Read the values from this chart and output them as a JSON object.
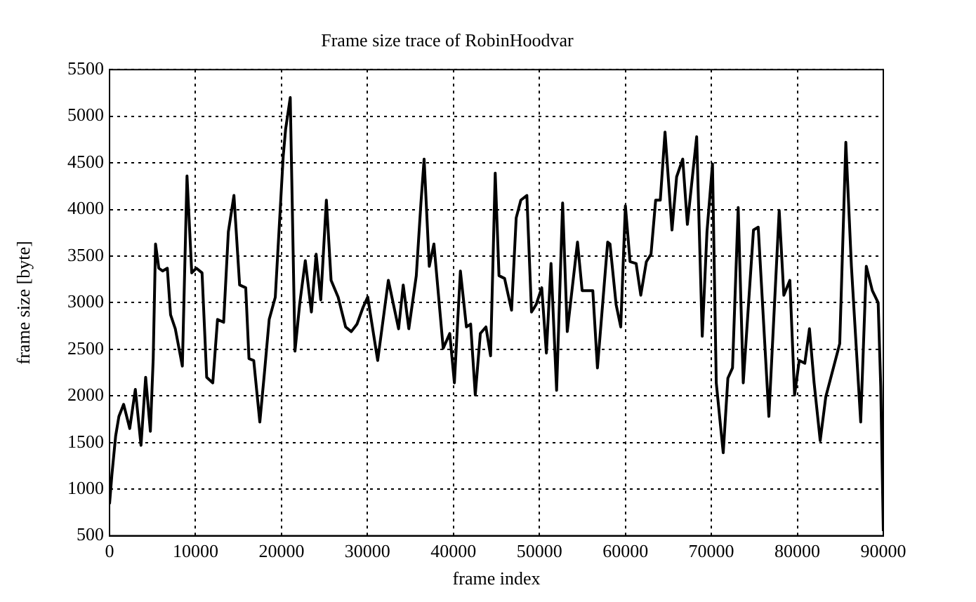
{
  "chart_data": {
    "type": "line",
    "title": "Frame size trace of RobinHoodvar",
    "xlabel": "frame index",
    "ylabel": "frame size [byte]",
    "x": [
      0,
      270,
      710,
      1090,
      1640,
      2350,
      3000,
      3660,
      4200,
      4750,
      5080,
      5350,
      5730,
      6170,
      6720,
      7100,
      7650,
      8470,
      9010,
      9560,
      10100,
      10760,
      11300,
      12010,
      12560,
      13270,
      13820,
      14470,
      15130,
      15840,
      16220,
      16770,
      17480,
      18020,
      18570,
      19280,
      20200,
      20480,
      21020,
      21570,
      22110,
      22770,
      23480,
      24030,
      24570,
      25220,
      25770,
      26590,
      27460,
      28120,
      28780,
      29490,
      30030,
      31190,
      32430,
      33620,
      34160,
      34810,
      35680,
      36220,
      36590,
      37190,
      37730,
      38810,
      39570,
      40110,
      40810,
      41510,
      42000,
      42540,
      43130,
      43780,
      44320,
      44860,
      45300,
      45950,
      46760,
      47300,
      47840,
      48540,
      49080,
      49620,
      50270,
      50810,
      51350,
      52000,
      52700,
      53240,
      54430,
      54970,
      56210,
      56750,
      57940,
      58210,
      58920,
      59460,
      60000,
      60540,
      61250,
      61790,
      62440,
      62980,
      63520,
      64060,
      64610,
      65420,
      65960,
      66670,
      67210,
      68290,
      68940,
      69490,
      70130,
      70570,
      71380,
      71920,
      72460,
      73120,
      73710,
      74900,
      75450,
      76690,
      77890,
      78430,
      79130,
      79680,
      80220,
      80870,
      81410,
      81950,
      82660,
      83310,
      84930,
      85640,
      86290,
      87370,
      88020,
      88720,
      89400,
      89700,
      90000
    ],
    "values": [
      840,
      1150,
      1570,
      1780,
      1910,
      1650,
      2070,
      1470,
      2200,
      1620,
      2400,
      3630,
      3370,
      3340,
      3370,
      2870,
      2720,
      2320,
      4360,
      3320,
      3370,
      3320,
      2200,
      2140,
      2820,
      2790,
      3760,
      4150,
      3190,
      3160,
      2400,
      2380,
      1720,
      2250,
      2820,
      3060,
      4570,
      4860,
      5200,
      2480,
      2980,
      3450,
      2900,
      3520,
      3030,
      4100,
      3240,
      3060,
      2740,
      2690,
      2770,
      2950,
      3060,
      2380,
      3240,
      2720,
      3190,
      2720,
      3290,
      4070,
      4540,
      3390,
      3630,
      2510,
      2670,
      2140,
      3340,
      2740,
      2770,
      2010,
      2670,
      2740,
      2430,
      4390,
      3290,
      3260,
      2920,
      3910,
      4100,
      4150,
      2900,
      2980,
      3160,
      2460,
      3420,
      2060,
      4070,
      2690,
      3650,
      3130,
      3130,
      2300,
      3650,
      3630,
      2980,
      2740,
      4040,
      3440,
      3420,
      3080,
      3440,
      3520,
      4100,
      4100,
      4830,
      3780,
      4350,
      4540,
      3840,
      4780,
      2640,
      3760,
      4490,
      2140,
      1390,
      2190,
      2300,
      4020,
      2140,
      3780,
      3810,
      1780,
      3990,
      3080,
      3240,
      2010,
      2380,
      2350,
      2720,
      2140,
      1520,
      1990,
      2560,
      4720,
      3390,
      1720,
      3390,
      3130,
      3000,
      2100,
      550
    ],
    "color": "#000000",
    "xlim": [
      0,
      90000
    ],
    "ylim": [
      500,
      5500
    ],
    "xticks": [
      0,
      10000,
      20000,
      30000,
      40000,
      50000,
      60000,
      70000,
      80000,
      90000
    ],
    "yticks": [
      500,
      1000,
      1500,
      2000,
      2500,
      3000,
      3500,
      4000,
      4500,
      5000,
      5500
    ],
    "grid": true
  }
}
